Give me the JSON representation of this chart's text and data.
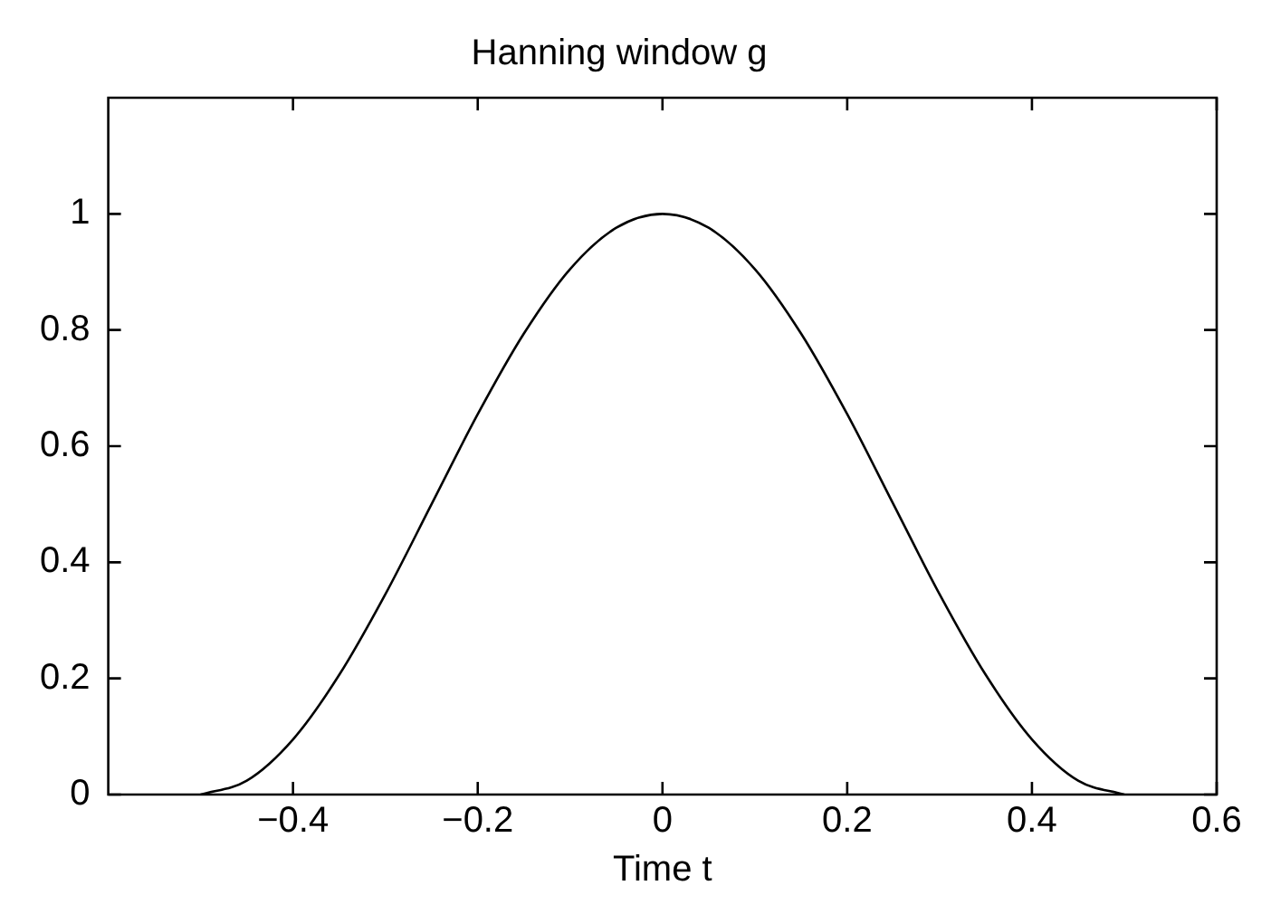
{
  "chart_data": {
    "type": "line",
    "title": "Hanning window g",
    "xlabel": "Time t",
    "x": [
      -0.5,
      -0.45,
      -0.4,
      -0.35,
      -0.3,
      -0.25,
      -0.2,
      -0.15,
      -0.1,
      -0.05,
      0,
      0.05,
      0.1,
      0.15,
      0.2,
      0.25,
      0.3,
      0.35,
      0.4,
      0.45,
      0.5
    ],
    "series": [
      {
        "color": "#000000",
        "values": [
          0,
          0.024,
          0.095,
          0.206,
          0.345,
          0.5,
          0.655,
          0.794,
          0.905,
          0.976,
          1,
          0.976,
          0.905,
          0.794,
          0.655,
          0.5,
          0.345,
          0.206,
          0.095,
          0.024,
          0
        ]
      }
    ],
    "xlim": [
      -0.6,
      0.6
    ],
    "xticks": [
      -0.4,
      -0.2,
      0,
      0.2,
      0.4,
      0.6
    ],
    "ylim": [
      0,
      1.2
    ],
    "yticks": [
      0,
      0.2,
      0.4,
      0.6,
      0.8,
      1
    ],
    "grid": false,
    "legend": false,
    "marker": "none",
    "line_style": "solid"
  }
}
